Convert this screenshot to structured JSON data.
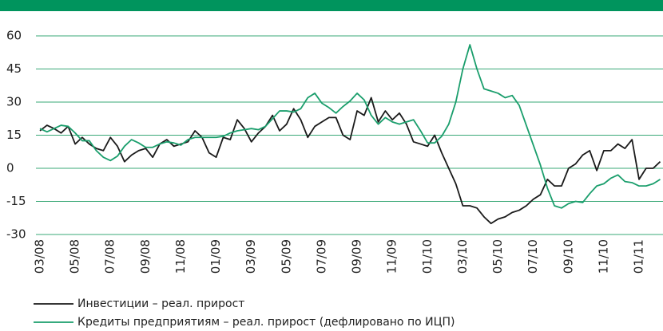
{
  "chart_data": {
    "type": "line",
    "categories": [
      "03/08",
      null,
      null,
      null,
      null,
      "05/08",
      null,
      null,
      null,
      null,
      "07/08",
      null,
      null,
      null,
      null,
      "09/08",
      null,
      null,
      null,
      null,
      "11/08",
      null,
      null,
      null,
      null,
      "01/09",
      null,
      null,
      null,
      null,
      "03/09",
      null,
      null,
      null,
      null,
      "05/09",
      null,
      null,
      null,
      null,
      "07/09",
      null,
      null,
      null,
      null,
      "09/09",
      null,
      null,
      null,
      null,
      "11/09",
      null,
      null,
      null,
      null,
      "01/10",
      null,
      null,
      null,
      null,
      "03/10",
      null,
      null,
      null,
      null,
      "05/10",
      null,
      null,
      null,
      null,
      "07/10",
      null,
      null,
      null,
      null,
      "09/10",
      null,
      null,
      null,
      null,
      "11/10",
      null,
      null,
      null,
      null,
      "01/11",
      null,
      null,
      null
    ],
    "series": [
      {
        "name": "Инвестиции – реал. прирост",
        "color": "#1a1a1a",
        "values": [
          17,
          19.5,
          18,
          16,
          19,
          11,
          14,
          11,
          9,
          8,
          14,
          10,
          3,
          6,
          8,
          9,
          5,
          11,
          13,
          10,
          11,
          12,
          17,
          14,
          7,
          5,
          14,
          13,
          22,
          18,
          12,
          16,
          19,
          24,
          17,
          20,
          27,
          22,
          14,
          19,
          21,
          23,
          23,
          15,
          13,
          26,
          24,
          32,
          21,
          26,
          22,
          25,
          20,
          12,
          11,
          10,
          15,
          7,
          0,
          -7,
          -17,
          -17,
          -18,
          -22,
          -25,
          -23,
          -22,
          -20,
          -19,
          -17,
          -14,
          -12,
          -5,
          -8,
          -8,
          0,
          2,
          6,
          8,
          -1,
          8,
          8,
          11,
          9,
          13,
          -5,
          0,
          0,
          3
        ]
      },
      {
        "name": "Кредиты предприятиям – реал. прирост (дефлировано по ИЦП)",
        "color": "#1a9e6c",
        "values": [
          18,
          16.5,
          18,
          19.5,
          19,
          16,
          12.5,
          12.5,
          8,
          5,
          3.5,
          5.5,
          10,
          13,
          11.5,
          9.5,
          9.5,
          11,
          12,
          11.5,
          10.5,
          13,
          14,
          14,
          14,
          14,
          14.5,
          16,
          17,
          17.5,
          18,
          17.5,
          19,
          22.5,
          26,
          26,
          25.5,
          27,
          32,
          34,
          29.5,
          27.5,
          25,
          28,
          30.5,
          34,
          31,
          24,
          20,
          23,
          21,
          20,
          21,
          22,
          17,
          11.5,
          11.5,
          14.5,
          20,
          30,
          45,
          56,
          45,
          36,
          35,
          34,
          32,
          33,
          28.5,
          19.5,
          10.5,
          1.5,
          -9,
          -17,
          -18,
          -16,
          -15,
          -15.5,
          -11.5,
          -8,
          -7,
          -4.5,
          -3,
          -6,
          -6.5,
          -8,
          -8,
          -7,
          -5
        ]
      }
    ],
    "ylim": [
      -30,
      60
    ],
    "yticks": [
      -30,
      -15,
      0,
      15,
      30,
      45,
      60
    ],
    "grid": true,
    "grid_color": "#3aa877"
  }
}
